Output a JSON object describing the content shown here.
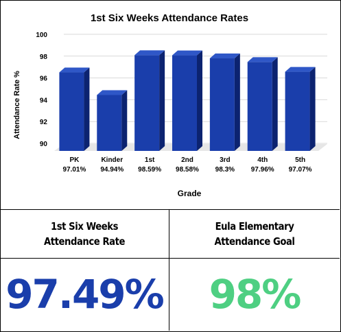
{
  "chart_data": {
    "type": "bar",
    "title": "1st Six Weeks Attendance Rates",
    "xlabel": "Grade",
    "ylabel": "Attendance Rate %",
    "ylim": [
      90,
      100
    ],
    "yticks": [
      90,
      92,
      94,
      96,
      98,
      100
    ],
    "grid": true,
    "categories": [
      "PK",
      "Kinder",
      "1st",
      "2nd",
      "3rd",
      "4th",
      "5th"
    ],
    "category_labels": [
      "97.01%",
      "94.94%",
      "98.59%",
      "98.58%",
      "98.3%",
      "97.96%",
      "97.07%"
    ],
    "values": [
      97.01,
      94.94,
      98.59,
      98.58,
      98.3,
      97.96,
      97.07
    ],
    "bar_color": "#1a3eab",
    "bar_side_color": "#0c2370",
    "bar_top_color": "#2f57c7"
  },
  "table": {
    "rate_label": "1st Six Weeks\nAttendance Rate",
    "goal_label": "Eula Elementary\nAttendance Goal",
    "rate_value": "97.49%",
    "goal_value": "98%",
    "rate_color": "#1a3eab",
    "goal_color": "#4ecf82"
  }
}
